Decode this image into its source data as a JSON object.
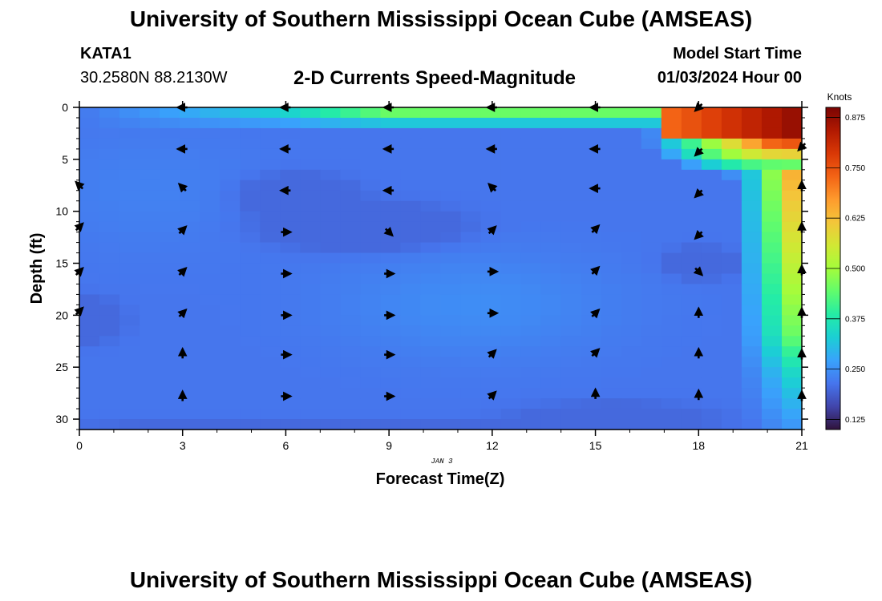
{
  "header": {
    "title": "University of Southern Mississippi Ocean Cube (AMSEAS)",
    "station": "KATA1",
    "coords": "30.2580N  88.2130W",
    "subtitle": "2-D Currents Speed-Magnitude",
    "start_label": "Model Start Time",
    "start_value": "01/03/2024 Hour 00"
  },
  "footer": {
    "title": "University of Southern Mississippi Ocean Cube (AMSEAS)"
  },
  "chart_data": {
    "type": "heatmap",
    "title": "2-D Currents Speed-Magnitude",
    "xlabel": "Forecast Time(Z)",
    "ylabel": "Depth (ft)",
    "xlim": [
      0,
      21
    ],
    "ylim": [
      0,
      31
    ],
    "xticks": [
      "0",
      "3",
      "6",
      "9",
      "12",
      "15",
      "18",
      "21"
    ],
    "yticks": [
      "0",
      "5",
      "10",
      "15",
      "20",
      "25",
      "30"
    ],
    "date_label": "JAN 3",
    "colorbar": {
      "unit": "Knots",
      "range": [
        0.1,
        0.9
      ],
      "ticks": [
        "0.125",
        "0.250",
        "0.375",
        "0.500",
        "0.625",
        "0.750",
        "0.875"
      ],
      "colors": [
        "#30123b",
        "#4145ab",
        "#4675ed",
        "#39a2fc",
        "#1bcfd4",
        "#24eca6",
        "#61fc6c",
        "#a4fc3b",
        "#d1e834",
        "#f3c63a",
        "#fe9b2d",
        "#f36315",
        "#d93806",
        "#b11901",
        "#7a0403"
      ]
    },
    "vectors": [
      {
        "t": 0,
        "d": 7.5,
        "dir": "up-left"
      },
      {
        "t": 0,
        "d": 11.5,
        "dir": "up-right"
      },
      {
        "t": 0,
        "d": 15.8,
        "dir": "up-right"
      },
      {
        "t": 0,
        "d": 19.6,
        "dir": "up-right"
      },
      {
        "t": 3,
        "d": 0,
        "dir": "left"
      },
      {
        "t": 3,
        "d": 4,
        "dir": "left"
      },
      {
        "t": 3,
        "d": 7.7,
        "dir": "up-left"
      },
      {
        "t": 3,
        "d": 11.8,
        "dir": "up-right"
      },
      {
        "t": 3,
        "d": 15.8,
        "dir": "up-right"
      },
      {
        "t": 3,
        "d": 19.8,
        "dir": "up-right"
      },
      {
        "t": 3,
        "d": 23.7,
        "dir": "up"
      },
      {
        "t": 3,
        "d": 27.8,
        "dir": "up"
      },
      {
        "t": 6,
        "d": 0,
        "dir": "left"
      },
      {
        "t": 6,
        "d": 4,
        "dir": "left"
      },
      {
        "t": 6,
        "d": 8,
        "dir": "left"
      },
      {
        "t": 6,
        "d": 12,
        "dir": "right"
      },
      {
        "t": 6,
        "d": 16,
        "dir": "right"
      },
      {
        "t": 6,
        "d": 20,
        "dir": "right"
      },
      {
        "t": 6,
        "d": 23.8,
        "dir": "right"
      },
      {
        "t": 6,
        "d": 27.8,
        "dir": "right"
      },
      {
        "t": 9,
        "d": 0,
        "dir": "left"
      },
      {
        "t": 9,
        "d": 4,
        "dir": "left"
      },
      {
        "t": 9,
        "d": 8,
        "dir": "left"
      },
      {
        "t": 9,
        "d": 12,
        "dir": "down-right"
      },
      {
        "t": 9,
        "d": 16,
        "dir": "right"
      },
      {
        "t": 9,
        "d": 20,
        "dir": "right"
      },
      {
        "t": 9,
        "d": 23.8,
        "dir": "right"
      },
      {
        "t": 9,
        "d": 27.8,
        "dir": "right"
      },
      {
        "t": 12,
        "d": 0,
        "dir": "left"
      },
      {
        "t": 12,
        "d": 4,
        "dir": "left"
      },
      {
        "t": 12,
        "d": 7.7,
        "dir": "up-left"
      },
      {
        "t": 12,
        "d": 11.8,
        "dir": "up-right"
      },
      {
        "t": 12,
        "d": 15.8,
        "dir": "right"
      },
      {
        "t": 12,
        "d": 19.8,
        "dir": "right"
      },
      {
        "t": 12,
        "d": 23.7,
        "dir": "up-right"
      },
      {
        "t": 12,
        "d": 27.7,
        "dir": "up-right"
      },
      {
        "t": 15,
        "d": 0,
        "dir": "left"
      },
      {
        "t": 15,
        "d": 4,
        "dir": "left"
      },
      {
        "t": 15,
        "d": 7.8,
        "dir": "left"
      },
      {
        "t": 15,
        "d": 11.7,
        "dir": "up-right"
      },
      {
        "t": 15,
        "d": 15.7,
        "dir": "up-right"
      },
      {
        "t": 15,
        "d": 19.8,
        "dir": "up-right"
      },
      {
        "t": 15,
        "d": 23.6,
        "dir": "up-right"
      },
      {
        "t": 15,
        "d": 27.6,
        "dir": "up"
      },
      {
        "t": 18,
        "d": 0,
        "dir": "down-left"
      },
      {
        "t": 18,
        "d": 4.3,
        "dir": "down-left"
      },
      {
        "t": 18,
        "d": 8.3,
        "dir": "down-left"
      },
      {
        "t": 18,
        "d": 12.3,
        "dir": "down-left"
      },
      {
        "t": 18,
        "d": 15.8,
        "dir": "down-right"
      },
      {
        "t": 18,
        "d": 19.8,
        "dir": "up"
      },
      {
        "t": 18,
        "d": 23.7,
        "dir": "up"
      },
      {
        "t": 18,
        "d": 27.7,
        "dir": "up"
      },
      {
        "t": 21,
        "d": 3.8,
        "dir": "down-left"
      },
      {
        "t": 21,
        "d": 7.6,
        "dir": "up"
      },
      {
        "t": 21,
        "d": 11.6,
        "dir": "up"
      },
      {
        "t": 21,
        "d": 15.7,
        "dir": "up"
      },
      {
        "t": 21,
        "d": 19.8,
        "dir": "up"
      },
      {
        "t": 21,
        "d": 23.8,
        "dir": "up"
      },
      {
        "t": 21,
        "d": 27.8,
        "dir": "up"
      }
    ]
  }
}
